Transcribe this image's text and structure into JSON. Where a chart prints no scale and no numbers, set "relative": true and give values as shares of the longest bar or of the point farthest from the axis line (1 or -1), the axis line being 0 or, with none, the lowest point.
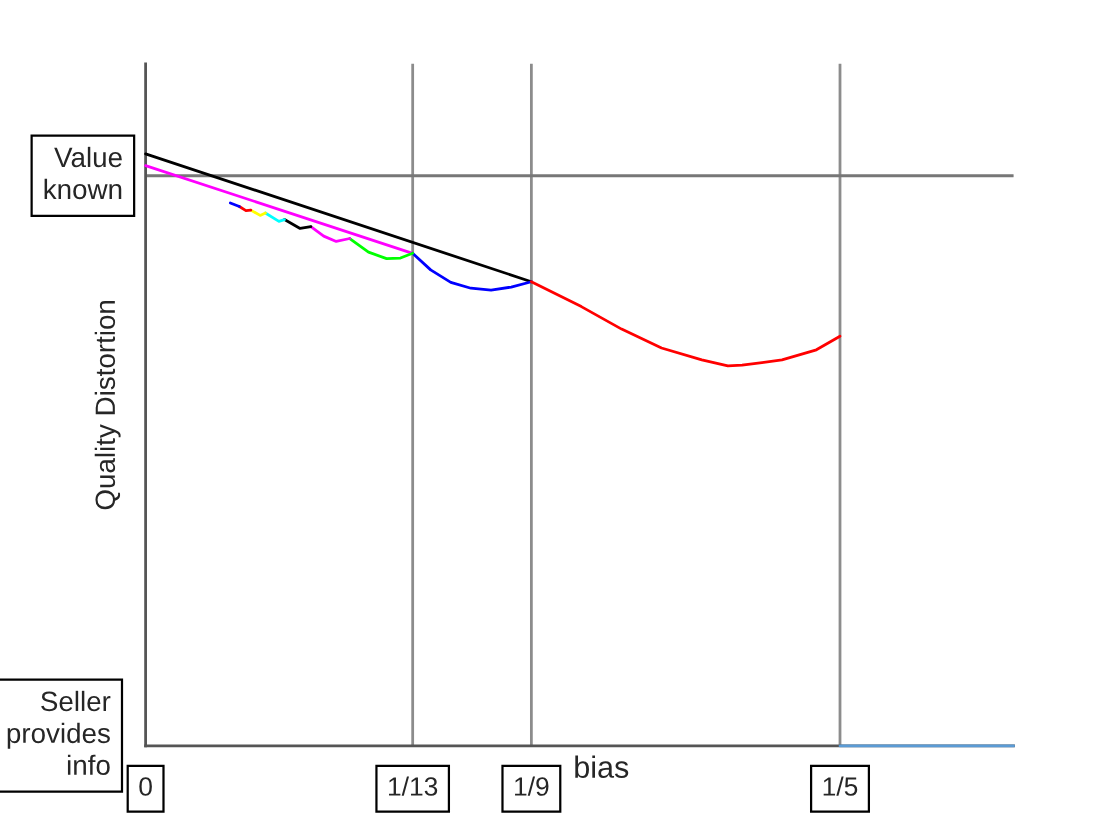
{
  "chart_data": {
    "type": "line",
    "relative": true,
    "xlabel": "bias",
    "ylabel": "Quality Distortion",
    "xlim": [
      0,
      0.25
    ],
    "xticks": [
      0,
      {
        "value": 0.076923,
        "label": "1/13"
      },
      {
        "value": 0.111111,
        "label": "1/9"
      },
      {
        "value": 0.2,
        "label": "1/5"
      }
    ],
    "grid": "x",
    "marker": "none",
    "line_style": "solid",
    "ref_lines": [
      {
        "axis": "y",
        "value": 0.963,
        "label": "Value known",
        "color": "#777777"
      }
    ],
    "annotations": [
      "Seller provides info"
    ],
    "series": [
      {
        "color": "#000000",
        "x": [
          0,
          0.1111
        ],
        "values": [
          1.0,
          0.784
        ]
      },
      {
        "color": "#ff00ff",
        "x": [
          0,
          0.0769
        ],
        "values": [
          0.98,
          0.832
        ]
      },
      {
        "color": "#0000ff",
        "x": [
          0.0769,
          0.0821,
          0.0879,
          0.0937,
          0.0995,
          0.1053,
          0.1111
        ],
        "values": [
          0.832,
          0.804,
          0.783,
          0.773,
          0.77,
          0.775,
          0.784
        ]
      },
      {
        "color": "#ff0000",
        "x": [
          0.1111,
          0.1255,
          0.1371,
          0.1486,
          0.1602,
          0.1677,
          0.1718,
          0.1833,
          0.1932,
          0.2
        ],
        "values": [
          0.784,
          0.742,
          0.704,
          0.672,
          0.652,
          0.642,
          0.643,
          0.652,
          0.669,
          0.692
        ]
      },
      {
        "color": "#00ff00",
        "x": [
          0.0588,
          0.0642,
          0.0694,
          0.0734,
          0.0769
        ],
        "values": [
          0.857,
          0.834,
          0.823,
          0.824,
          0.832
        ]
      },
      {
        "color": "#ff00ff",
        "x": [
          0.0476,
          0.0513,
          0.0549,
          0.0588
        ],
        "values": [
          0.877,
          0.861,
          0.852,
          0.857
        ]
      },
      {
        "color": "#000000",
        "x": [
          0.04,
          0.0445,
          0.0476
        ],
        "values": [
          0.889,
          0.874,
          0.877
        ]
      },
      {
        "color": "#00ffff",
        "x": [
          0.0345,
          0.0384,
          0.04
        ],
        "values": [
          0.9,
          0.886,
          0.889
        ]
      },
      {
        "color": "#ffff00",
        "x": [
          0.0303,
          0.033,
          0.0345
        ],
        "values": [
          0.905,
          0.896,
          0.9
        ]
      },
      {
        "color": "#ff0000",
        "x": [
          0.027,
          0.0289,
          0.0303
        ],
        "values": [
          0.911,
          0.904,
          0.905
        ]
      },
      {
        "color": "#0000ff",
        "x": [
          0.0244,
          0.027
        ],
        "values": [
          0.917,
          0.911
        ]
      },
      {
        "color": "#5b9bd5",
        "x": [
          0.2,
          0.25
        ],
        "values": [
          0,
          0
        ]
      }
    ]
  }
}
